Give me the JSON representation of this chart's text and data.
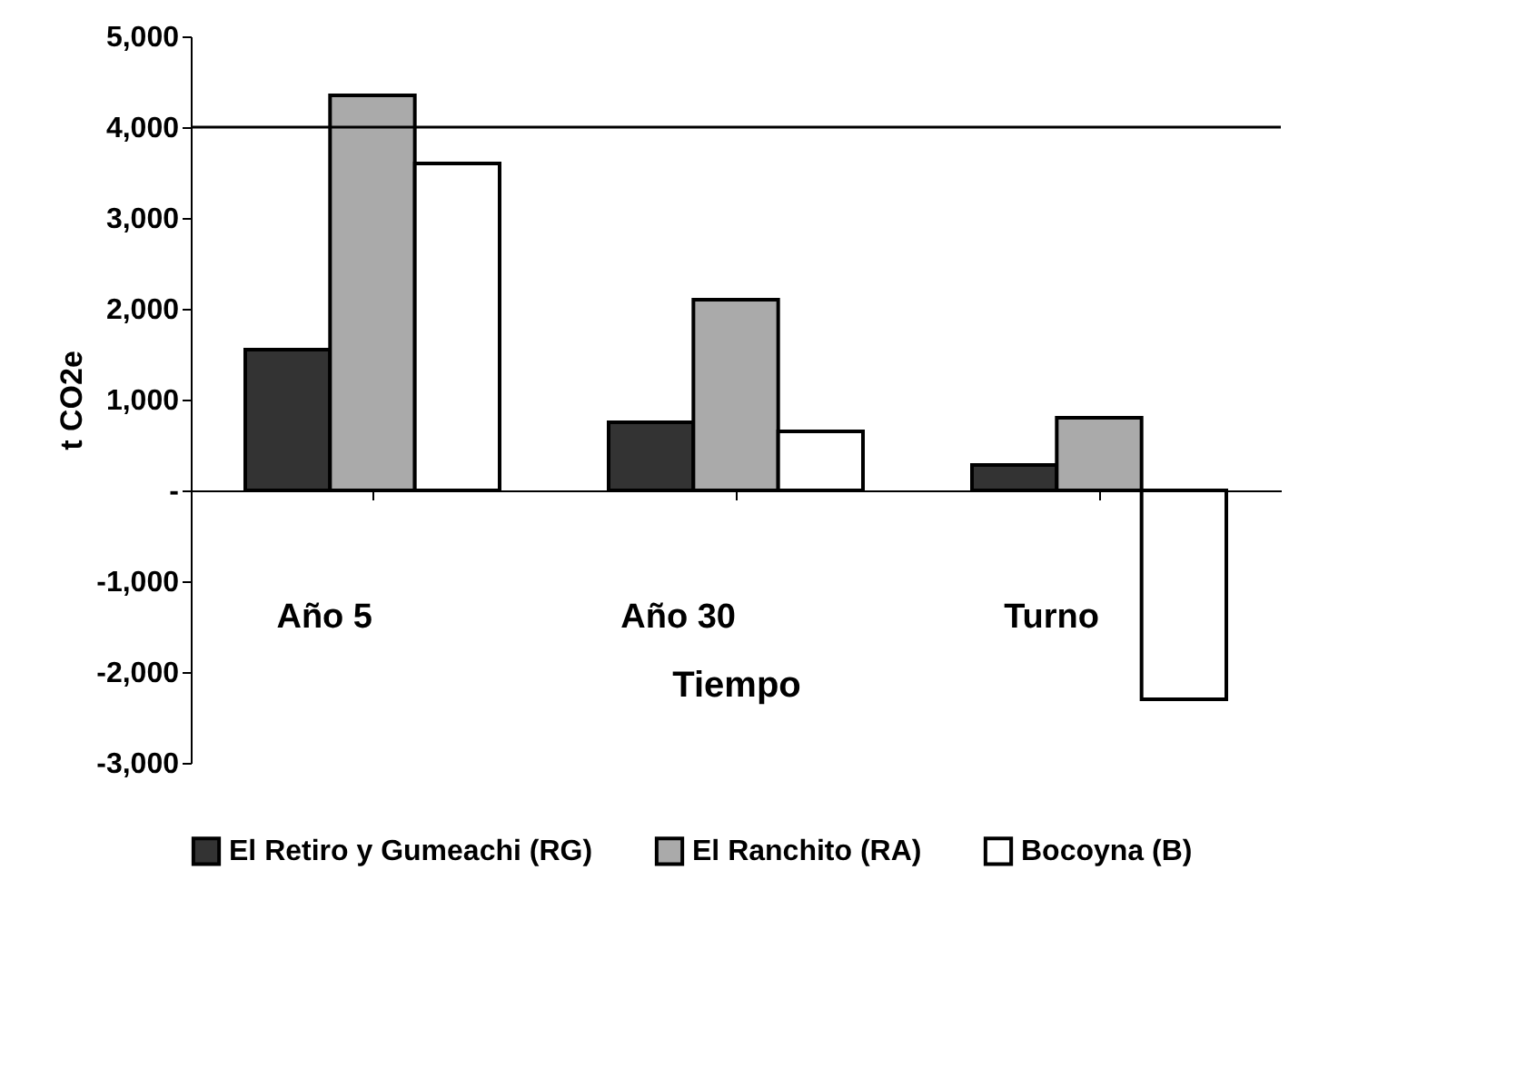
{
  "chart_data": {
    "type": "bar",
    "xlabel": "Tiempo",
    "ylabel": "t CO2e",
    "categories": [
      "Año 5",
      "Año 30",
      "Turno"
    ],
    "series": [
      {
        "name": "El Retiro y Gumeachi (RG)",
        "color": "#333333",
        "values": [
          1550,
          750,
          280
        ]
      },
      {
        "name": "El Ranchito (RA)",
        "color": "#aaaaaa",
        "values": [
          4350,
          2100,
          800
        ]
      },
      {
        "name": "Bocoyna (B)",
        "color": "#ffffff",
        "values": [
          3600,
          650,
          -2300
        ]
      }
    ],
    "ylim": [
      -3000,
      5000
    ],
    "yticks": [
      {
        "value": -3000,
        "label": "-3,000"
      },
      {
        "value": -2000,
        "label": "-2,000"
      },
      {
        "value": -1000,
        "label": "-1,000"
      },
      {
        "value": 0,
        "label": "-"
      },
      {
        "value": 1000,
        "label": "1,000"
      },
      {
        "value": 2000,
        "label": "2,000"
      },
      {
        "value": 3000,
        "label": "3,000"
      },
      {
        "value": 4000,
        "label": "4,000"
      },
      {
        "value": 5000,
        "label": "5,000"
      }
    ],
    "ref_lines": [
      {
        "axis": "y",
        "value": 4000,
        "color": "#000000"
      }
    ],
    "grid": false,
    "legend": "bottom"
  }
}
